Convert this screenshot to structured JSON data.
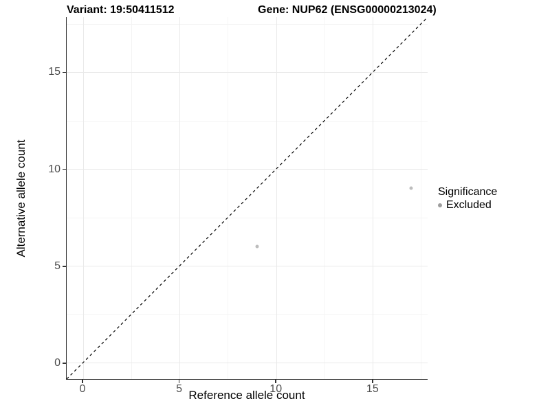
{
  "chart_data": {
    "type": "scatter",
    "titles": {
      "left": "Variant: 19:50411512",
      "right": "Gene: NUP62 (ENSG00000213024)"
    },
    "xlabel": "Reference allele count",
    "ylabel": "Alternative allele count",
    "xlim": [
      -0.85,
      17.85
    ],
    "ylim": [
      -0.85,
      17.85
    ],
    "x_ticks": [
      0,
      5,
      10,
      15
    ],
    "y_ticks": [
      0,
      5,
      10,
      15
    ],
    "x_minor_ticks": [
      2.5,
      7.5,
      12.5,
      17.5
    ],
    "y_minor_ticks": [
      2.5,
      7.5,
      12.5,
      17.5
    ],
    "grid": "on",
    "identity_line": {
      "shown": true,
      "style": "dashed",
      "color": "#000000"
    },
    "series": [
      {
        "name": "Excluded",
        "color": "#bdbdbd",
        "points": [
          {
            "x": 9,
            "y": 6
          },
          {
            "x": 17,
            "y": 9
          }
        ]
      }
    ],
    "legend": {
      "title": "Significance",
      "position": "right",
      "items": [
        {
          "label": "Excluded",
          "color": "#9d9d9d",
          "marker": "circle"
        }
      ]
    },
    "colors": {
      "grid_major": "#e9e9e9",
      "grid_minor": "#f4f4f4",
      "axis_line": "#333333",
      "tick_label": "#4d4d4d",
      "title": "#000000"
    }
  }
}
